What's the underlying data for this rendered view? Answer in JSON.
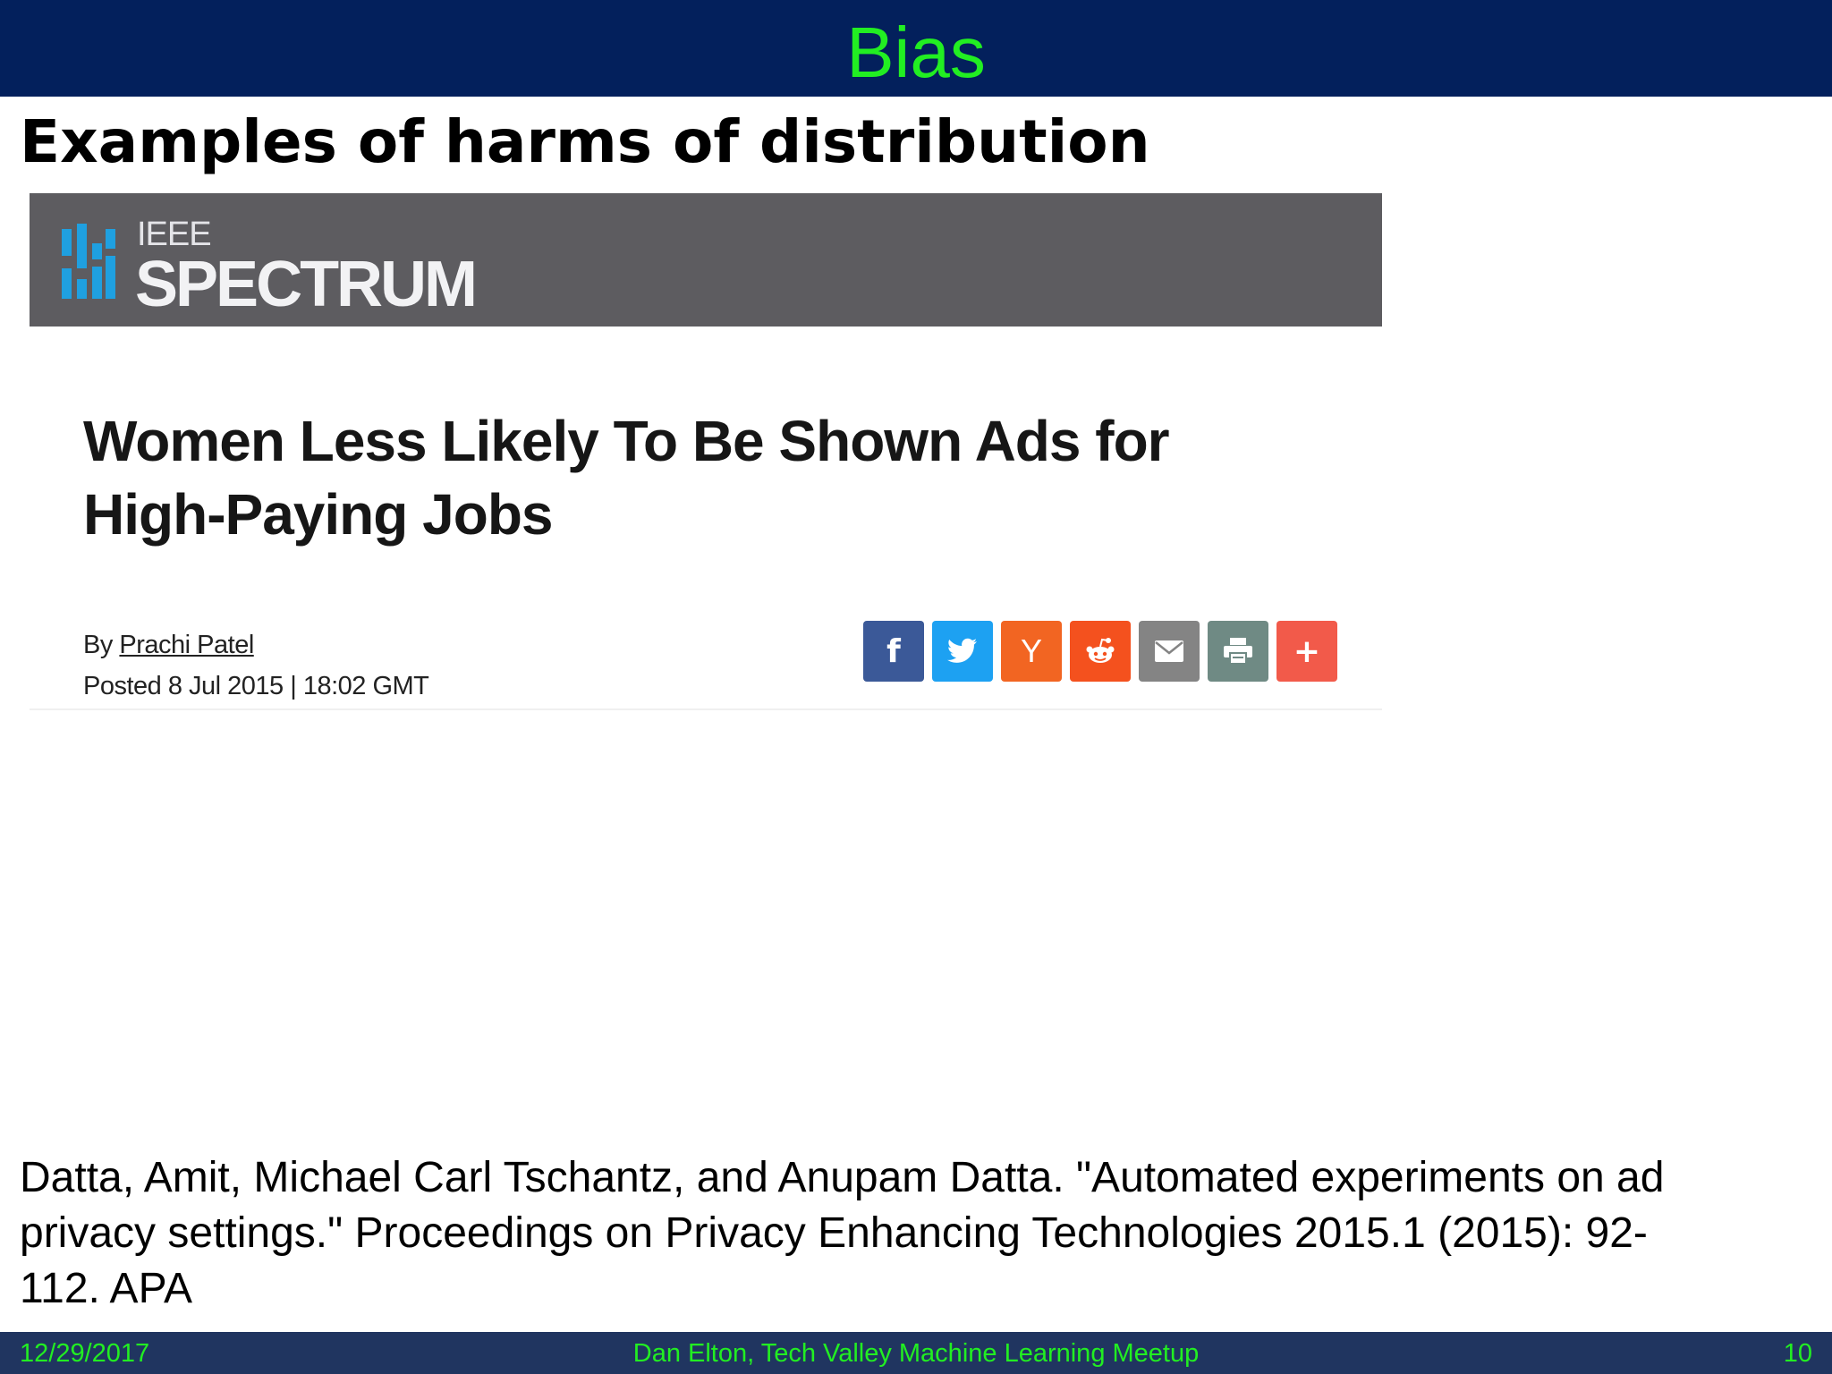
{
  "slide": {
    "title": "Bias",
    "subtitle": "Examples of harms of distribution"
  },
  "article": {
    "logo_top": "IEEE",
    "logo_main": "SPECTRUM",
    "headline_line1": "Women Less Likely To Be Shown Ads for",
    "headline_line2": "High-Paying Jobs",
    "byline_prefix": "By",
    "author": "Prachi Patel",
    "posted": "Posted 8 Jul 2015 | 18:02 GMT",
    "share_buttons": [
      {
        "name": "facebook",
        "icon": "facebook-icon",
        "glyph": "f",
        "color": "#3b5998"
      },
      {
        "name": "twitter",
        "icon": "twitter-icon",
        "glyph": "",
        "color": "#1da1f2"
      },
      {
        "name": "hacker-news",
        "icon": "y-combinator-icon",
        "glyph": "Y",
        "color": "#f26522"
      },
      {
        "name": "reddit",
        "icon": "reddit-icon",
        "glyph": "",
        "color": "#f4511e"
      },
      {
        "name": "email",
        "icon": "email-icon",
        "glyph": "",
        "color": "#848484"
      },
      {
        "name": "print",
        "icon": "print-icon",
        "glyph": "",
        "color": "#6f8a84"
      },
      {
        "name": "more",
        "icon": "plus-icon",
        "glyph": "+",
        "color": "#f25a4a"
      }
    ]
  },
  "citation": {
    "line1": "Datta, Amit, Michael Carl Tschantz, and Anupam Datta. \"Automated experiments on ad",
    "line2": "privacy settings.\" Proceedings on Privacy Enhancing Technologies 2015.1 (2015): 92-",
    "line3": "112. APA"
  },
  "footer": {
    "date": "12/29/2017",
    "center": "Dan Elton, Tech Valley Machine Learning Meetup",
    "page": "10"
  },
  "colors": {
    "title_bar": "#03205c",
    "title_text": "#22ee22",
    "footer_bar": "#203560",
    "brand_bar": "#5d5c60",
    "logo_blue": "#1fa0e0"
  }
}
